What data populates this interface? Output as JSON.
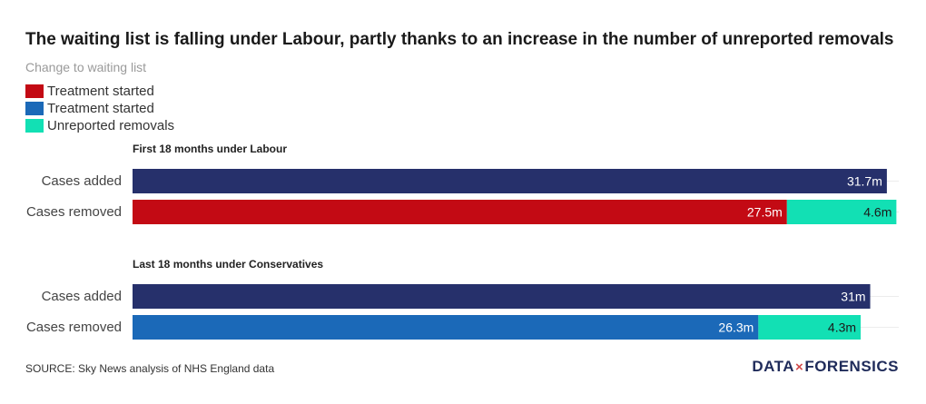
{
  "header": {
    "title": "The waiting list is falling under Labour, partly thanks to an increase in the number of unreported removals",
    "subtitle": "Change to waiting list"
  },
  "legend": [
    {
      "label": "Treatment started",
      "color": "#c30a14"
    },
    {
      "label": "Treatment started",
      "color": "#1b69b8"
    },
    {
      "label": "Unreported removals",
      "color": "#12e0b4"
    }
  ],
  "chart_data": {
    "type": "bar",
    "orientation": "horizontal",
    "stacked": true,
    "xlim": [
      0,
      32.2
    ],
    "grid": true,
    "groups": [
      {
        "title": "First 18 months under Labour",
        "rows": [
          {
            "label": "Cases added",
            "segments": [
              {
                "value": 31.7,
                "label": "31.7m",
                "color": "#26306b"
              }
            ]
          },
          {
            "label": "Cases removed",
            "segments": [
              {
                "value": 27.5,
                "label": "27.5m",
                "color": "#c30a14",
                "series": "Treatment started"
              },
              {
                "value": 4.6,
                "label": "4.6m",
                "color": "#12e0b4",
                "series": "Unreported removals"
              }
            ]
          }
        ]
      },
      {
        "title": "Last 18 months under Conservatives",
        "rows": [
          {
            "label": "Cases added",
            "segments": [
              {
                "value": 31,
                "label": "31m",
                "color": "#26306b"
              }
            ]
          },
          {
            "label": "Cases removed",
            "segments": [
              {
                "value": 26.3,
                "label": "26.3m",
                "color": "#1b69b8",
                "series": "Treatment started"
              },
              {
                "value": 4.3,
                "label": "4.3m",
                "color": "#12e0b4",
                "series": "Unreported removals"
              }
            ]
          }
        ]
      }
    ]
  },
  "footer": {
    "source": "SOURCE: Sky News analysis of NHS England data",
    "logo_left": "DATA",
    "logo_mid": "×",
    "logo_right": "FORENSICS"
  }
}
